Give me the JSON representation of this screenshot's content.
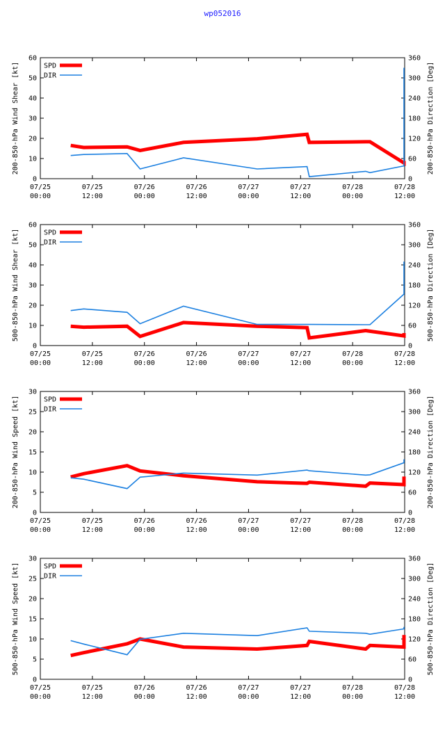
{
  "title": "wp052016",
  "colors": {
    "spd": "#ff0000",
    "dir": "#1a7fe0",
    "axis": "#000000",
    "title": "#1a1aff"
  },
  "x_ticks": [
    [
      "07/25",
      "00:00"
    ],
    [
      "07/25",
      "12:00"
    ],
    [
      "07/26",
      "00:00"
    ],
    [
      "07/26",
      "12:00"
    ],
    [
      "07/27",
      "00:00"
    ],
    [
      "07/27",
      "12:00"
    ],
    [
      "07/28",
      "00:00"
    ],
    [
      "07/28",
      "12:00"
    ]
  ],
  "x_range_hours": [
    0,
    84
  ],
  "chart_data": [
    {
      "type": "line",
      "ylabel": "200-850-hPa Wind Shear [kt]",
      "y2label": "200-850-hPa Direction [Deg]",
      "ylim": [
        0,
        60
      ],
      "yticks": [
        0,
        10,
        20,
        30,
        40,
        50,
        60
      ],
      "y2lim": [
        0,
        360
      ],
      "y2ticks": [
        0,
        60,
        120,
        180,
        240,
        300,
        360
      ],
      "legend": [
        "SPD",
        "DIR"
      ],
      "series": [
        {
          "name": "SPD",
          "axis": "left",
          "x": [
            7,
            10,
            20,
            23,
            33,
            50,
            61.5,
            62,
            75,
            76,
            85,
            88
          ],
          "values": [
            16.5,
            15.5,
            15.8,
            14,
            18,
            19.8,
            22,
            18,
            18.3,
            18.3,
            7.8,
            8.8
          ]
        },
        {
          "name": "DIR",
          "axis": "right",
          "x": [
            7,
            10,
            20,
            23,
            33,
            50,
            61.5,
            62,
            75,
            76,
            85,
            88
          ],
          "values": [
            69,
            72,
            75,
            29,
            62,
            29,
            36,
            6,
            22,
            18,
            38,
            330
          ]
        }
      ]
    },
    {
      "type": "line",
      "ylabel": "500-850-hPa Wind Shear [kt]",
      "y2label": "500-850-hPa Direction [Deg]",
      "ylim": [
        0,
        60
      ],
      "yticks": [
        0,
        10,
        20,
        30,
        40,
        50,
        60
      ],
      "y2lim": [
        0,
        360
      ],
      "y2ticks": [
        0,
        60,
        120,
        180,
        240,
        300,
        360
      ],
      "legend": [
        "SPD",
        "DIR"
      ],
      "series": [
        {
          "name": "SPD",
          "axis": "left",
          "x": [
            7,
            10,
            20,
            23,
            33,
            50,
            61.5,
            62,
            75,
            76,
            85,
            88
          ],
          "values": [
            9.6,
            9.1,
            9.6,
            4.5,
            11.4,
            9.6,
            8.9,
            3.8,
            7.4,
            7.1,
            4.8,
            6.2
          ]
        },
        {
          "name": "DIR",
          "axis": "right",
          "x": [
            7,
            10,
            20,
            23,
            33,
            50,
            61.5,
            62,
            75,
            76,
            85,
            88
          ],
          "values": [
            104,
            109,
            99,
            65,
            117,
            63,
            63,
            63,
            62,
            62,
            153,
            250
          ]
        }
      ]
    },
    {
      "type": "line",
      "ylabel": "200-850-hPa Wind Speed [kt]",
      "y2label": "200-850-hPa Direction [Deg]",
      "ylim": [
        0,
        30
      ],
      "yticks": [
        0,
        5,
        10,
        15,
        20,
        25,
        30
      ],
      "y2lim": [
        0,
        360
      ],
      "y2ticks": [
        0,
        60,
        120,
        180,
        240,
        300,
        360
      ],
      "legend": [
        "SPD",
        "DIR"
      ],
      "series": [
        {
          "name": "SPD",
          "axis": "left",
          "x": [
            7,
            10,
            20,
            23,
            33,
            50,
            61.5,
            62,
            75,
            76,
            85,
            88
          ],
          "values": [
            8.8,
            9.6,
            11.6,
            10.3,
            9.1,
            7.6,
            7.2,
            7.5,
            6.5,
            7.3,
            6.9,
            8.9
          ]
        },
        {
          "name": "DIR",
          "axis": "right",
          "x": [
            7,
            10,
            20,
            23,
            33,
            50,
            61.5,
            62,
            75,
            76,
            85,
            88
          ],
          "values": [
            103,
            99,
            71,
            105,
            117,
            111,
            126,
            124,
            111,
            112,
            148,
            158
          ]
        }
      ]
    },
    {
      "type": "line",
      "ylabel": "500-850-hPa Wind Speed [kt]",
      "y2label": "500-850-hPa Direction [Deg]",
      "ylim": [
        0,
        30
      ],
      "yticks": [
        0,
        5,
        10,
        15,
        20,
        25,
        30
      ],
      "y2lim": [
        0,
        360
      ],
      "y2ticks": [
        0,
        60,
        120,
        180,
        240,
        300,
        360
      ],
      "legend": [
        "SPD",
        "DIR"
      ],
      "series": [
        {
          "name": "SPD",
          "axis": "left",
          "x": [
            7,
            10,
            20,
            23,
            33,
            50,
            61.5,
            62,
            75,
            76,
            85,
            88
          ],
          "values": [
            5.9,
            6.6,
            8.8,
            10,
            8,
            7.5,
            8.4,
            9.4,
            7.5,
            8.4,
            8,
            11
          ]
        },
        {
          "name": "DIR",
          "axis": "right",
          "x": [
            7,
            10,
            20,
            23,
            33,
            50,
            61.5,
            62,
            75,
            76,
            85,
            88
          ],
          "values": [
            115,
            105,
            73,
            119,
            137,
            130,
            153,
            143,
            137,
            134,
            150,
            156
          ]
        }
      ]
    }
  ]
}
